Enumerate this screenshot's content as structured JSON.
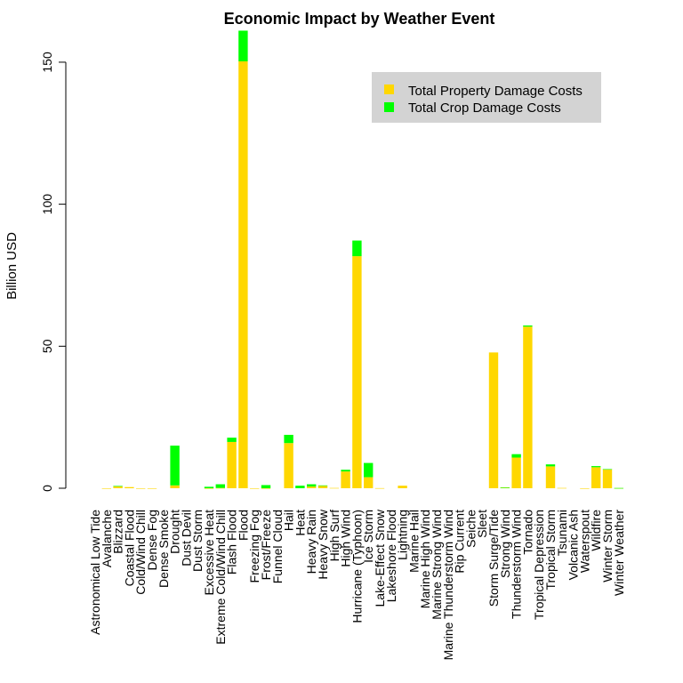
{
  "chart_data": {
    "type": "bar",
    "stacked": true,
    "title": "Economic Impact by Weather Event",
    "xlabel": "",
    "ylabel": "Billion USD",
    "ylim": [
      0,
      160
    ],
    "yticks": [
      0,
      50,
      100,
      150
    ],
    "grid": false,
    "legend_position": "top-right",
    "categories": [
      "Astronomical Low Tide",
      "Avalanche",
      "Blizzard",
      "Coastal Flood",
      "Cold/Wind Chill",
      "Dense Fog",
      "Dense Smoke",
      "Drought",
      "Dust Devil",
      "Dust Storm",
      "Excessive Heat",
      "Extreme Cold/Wind Chill",
      "Flash Flood",
      "Flood",
      "Freezing Fog",
      "Frost/Freeze",
      "Funnel Cloud",
      "Hail",
      "Heat",
      "Heavy Rain",
      "Heavy Snow",
      "High Surf",
      "High Wind",
      "Hurricane (Typhoon)",
      "Ice Storm",
      "Lake-Effect Snow",
      "Lakeshore Flood",
      "Lightning",
      "Marine Hail",
      "Marine High Wind",
      "Marine Strong Wind",
      "Marine Thunderstorm Wind",
      "Rip Current",
      "Seiche",
      "Sleet",
      "Storm Surge/Tide",
      "Strong Wind",
      "Thunderstorm Wind",
      "Tornado",
      "Tropical Depression",
      "Tropical Storm",
      "Tsunami",
      "Volcanic Ash",
      "Waterspout",
      "Wildfire",
      "Winter Storm",
      "Winter Weather"
    ],
    "series": [
      {
        "name": "Total Property Damage Costs",
        "color": "#FFD700",
        "values": [
          0,
          0.01,
          0.7,
          0.4,
          0.01,
          0.01,
          0,
          1.0,
          0,
          0,
          0.01,
          0.1,
          16.3,
          150.3,
          0.01,
          0.01,
          0,
          15.9,
          0,
          0.6,
          0.9,
          0.1,
          5.9,
          81.7,
          3.9,
          0.04,
          0,
          0.9,
          0,
          0,
          0,
          0,
          0,
          0,
          0,
          47.8,
          0.2,
          10.8,
          56.9,
          0,
          7.7,
          0.1,
          0,
          0.01,
          7.4,
          6.7,
          0.05
        ]
      },
      {
        "name": "Total Crop Damage Costs",
        "color": "#00FF00",
        "values": [
          0,
          0,
          0.1,
          0,
          0,
          0,
          0,
          14.0,
          0,
          0,
          0.5,
          1.3,
          1.5,
          10.8,
          0,
          1.1,
          0,
          2.9,
          0.9,
          0.8,
          0.1,
          0,
          0.6,
          5.5,
          5.0,
          0,
          0,
          0,
          0,
          0,
          0,
          0,
          0,
          0,
          0,
          0,
          0.1,
          1.2,
          0.4,
          0,
          0.7,
          0,
          0,
          0,
          0.4,
          0.03,
          0.03
        ]
      }
    ]
  }
}
